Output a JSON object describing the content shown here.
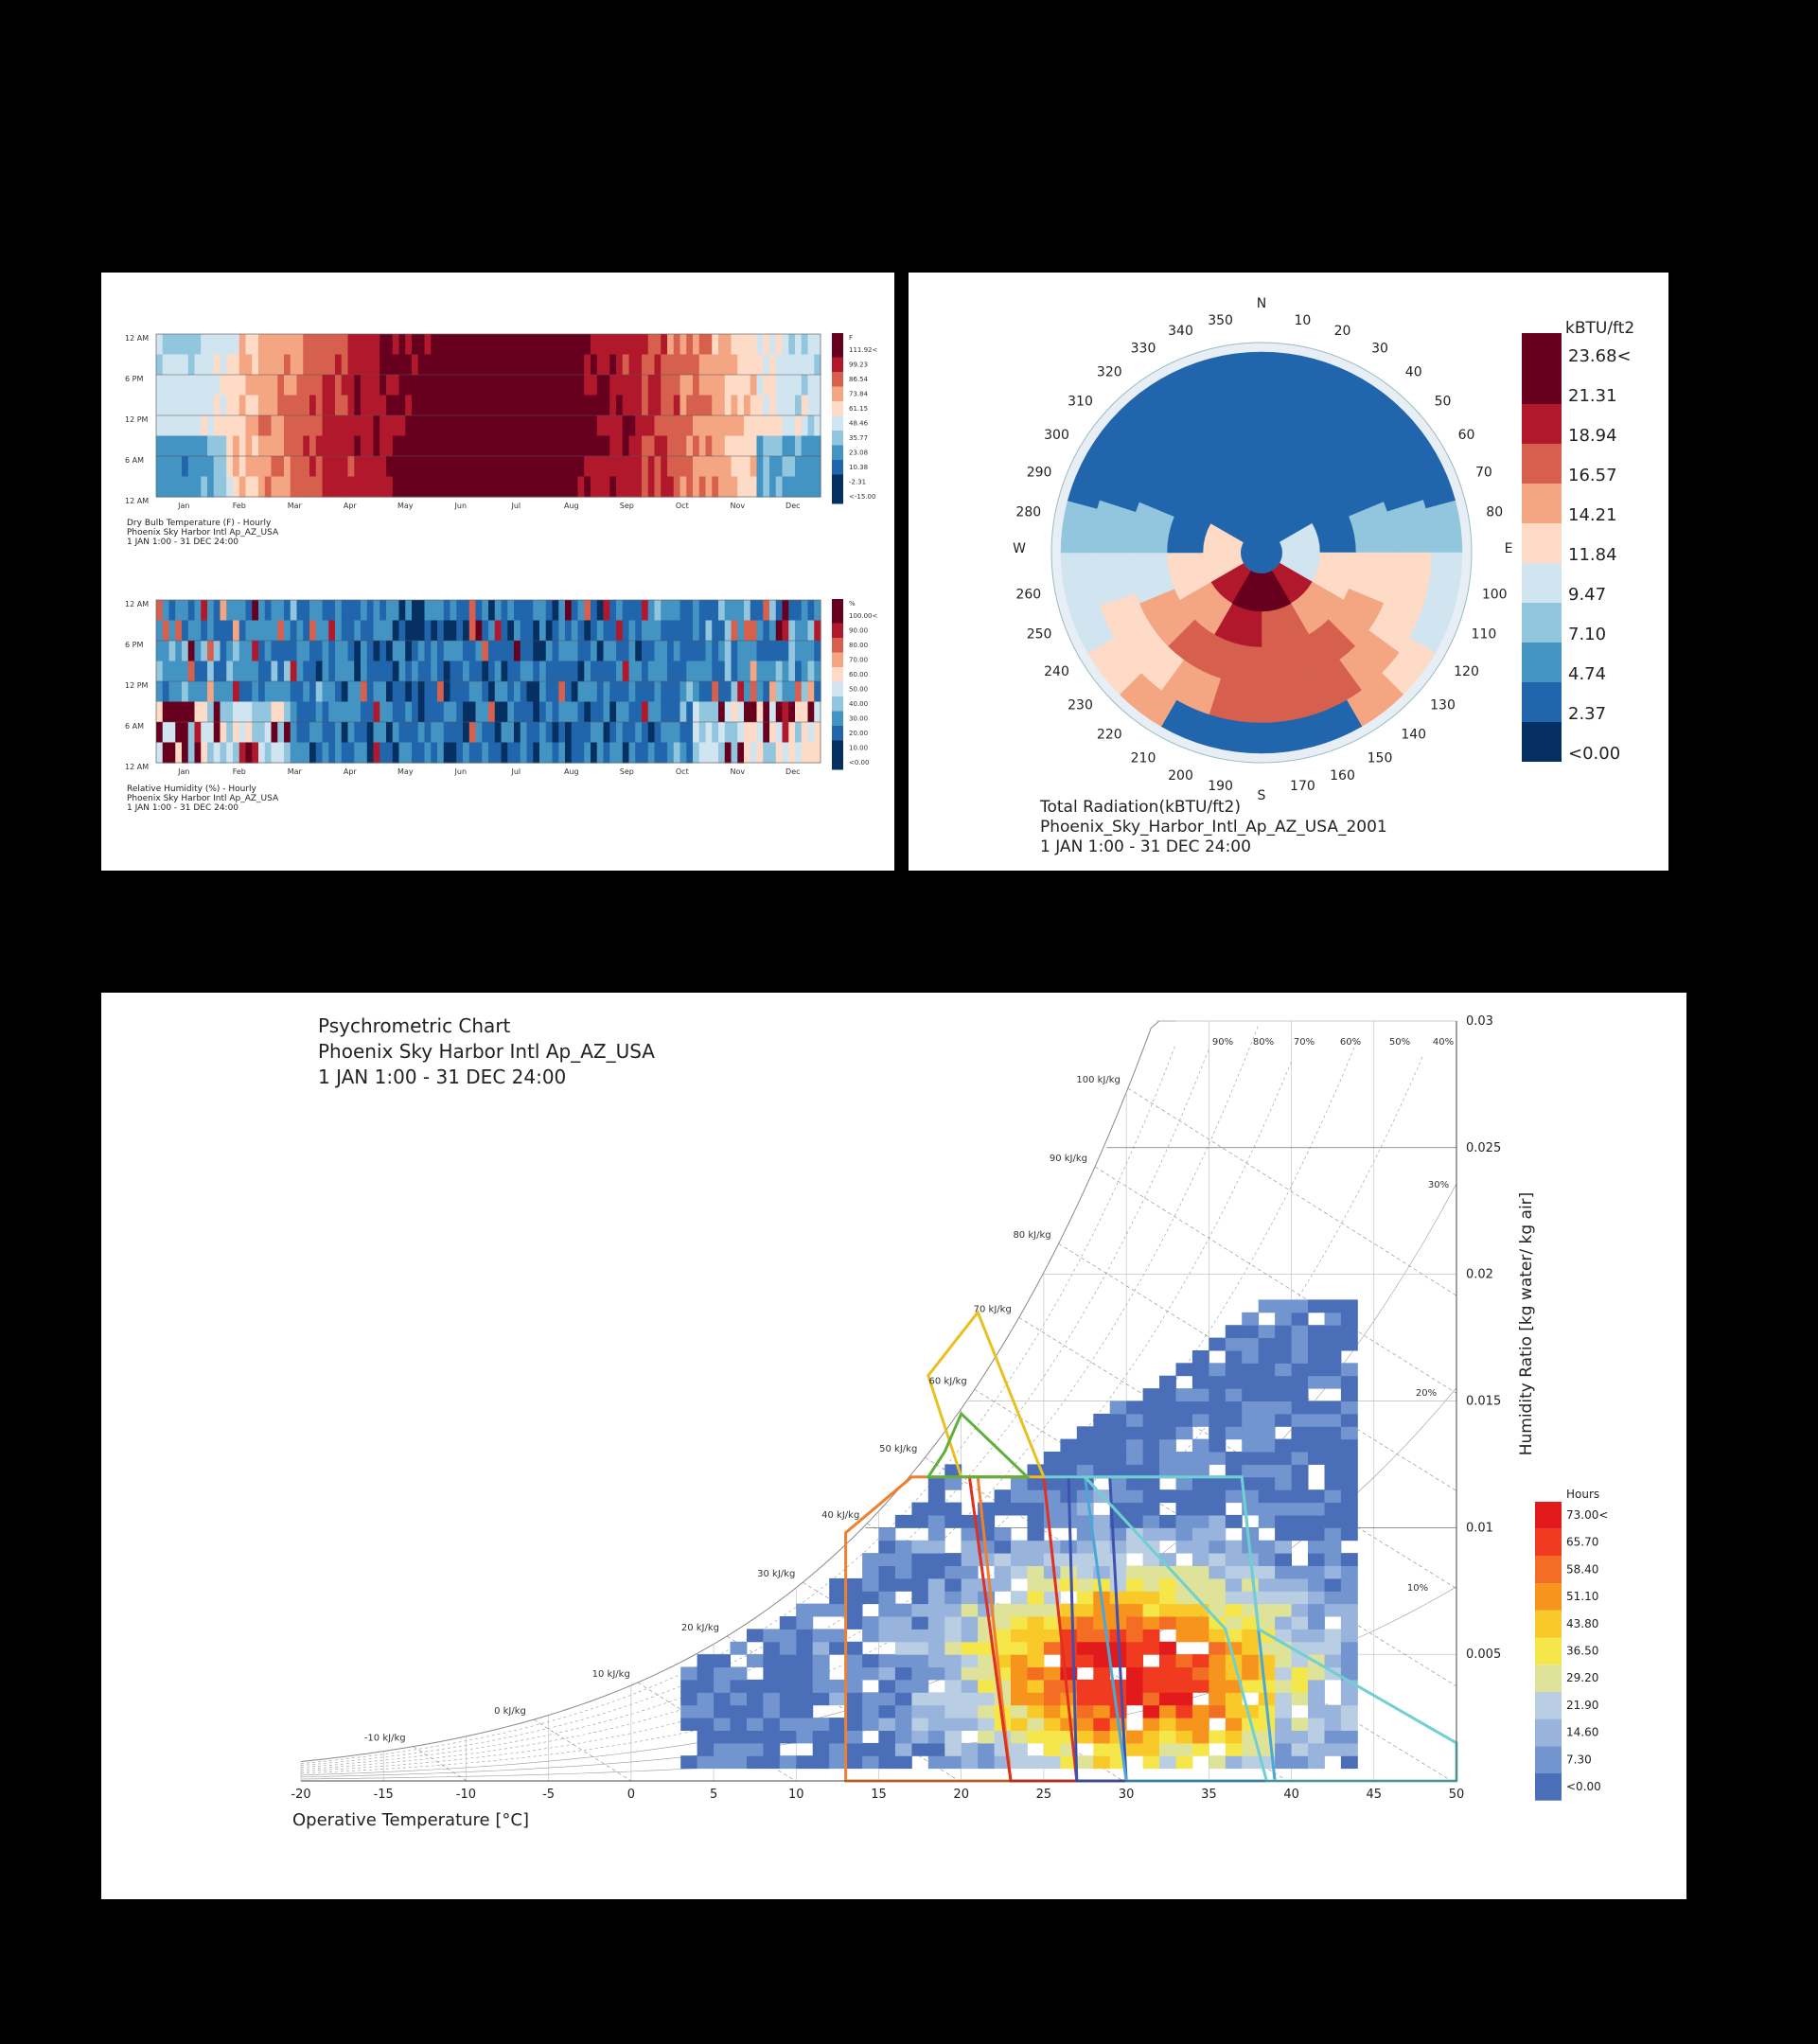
{
  "chart_data": [
    {
      "type": "heatmap",
      "id": "dry-bulb",
      "caption": [
        "Dry Bulb Temperature (F) - Hourly",
        "Phoenix Sky Harbor Intl Ap_AZ_USA",
        "1 JAN 1:00 - 31 DEC 24:00"
      ],
      "y_ticks": [
        "12 AM",
        "6 PM",
        "12 PM",
        "6 AM",
        "12 AM"
      ],
      "x_ticks": [
        "Jan",
        "Feb",
        "Mar",
        "Apr",
        "May",
        "Jun",
        "Jul",
        "Aug",
        "Sep",
        "Oct",
        "Nov",
        "Dec"
      ],
      "legend_unit": "F",
      "legend": [
        "111.92<",
        "99.23",
        "86.54",
        "73.84",
        "61.15",
        "48.46",
        "35.77",
        "23.08",
        "10.38",
        "-2.31",
        "<-15.00"
      ]
    },
    {
      "type": "heatmap",
      "id": "relative-humidity",
      "caption": [
        "Relative Humidity (%) - Hourly",
        "Phoenix Sky Harbor Intl Ap_AZ_USA",
        "1 JAN 1:00 - 31 DEC 24:00"
      ],
      "y_ticks": [
        "12 AM",
        "6 PM",
        "12 PM",
        "6 AM",
        "12 AM"
      ],
      "x_ticks": [
        "Jan",
        "Feb",
        "Mar",
        "Apr",
        "May",
        "Jun",
        "Jul",
        "Aug",
        "Sep",
        "Oct",
        "Nov",
        "Dec"
      ],
      "legend_unit": "%",
      "legend": [
        "100.00<",
        "90.00",
        "80.00",
        "70.00",
        "60.00",
        "50.00",
        "40.00",
        "30.00",
        "20.00",
        "10.00",
        "<0.00"
      ]
    },
    {
      "type": "heatmap",
      "id": "radiation-rose",
      "caption": [
        "Total Radiation(kBTU/ft2)",
        "Phoenix_Sky_Harbor_Intl_Ap_AZ_USA_2001",
        "1 JAN 1:00 - 31 DEC 24:00"
      ],
      "directions": {
        "north": "N",
        "east": "E",
        "south": "S",
        "west": "W"
      },
      "azimuth_labels": [
        10,
        20,
        30,
        40,
        50,
        60,
        70,
        80,
        100,
        110,
        120,
        130,
        140,
        150,
        160,
        170,
        190,
        200,
        210,
        220,
        230,
        240,
        250,
        260,
        280,
        290,
        300,
        310,
        320,
        330,
        340,
        350
      ],
      "legend_unit": "kBTU/ft2",
      "legend": [
        "23.68<",
        "21.31",
        "18.94",
        "16.57",
        "14.21",
        "11.84",
        "9.47",
        "7.10",
        "4.74",
        "2.37",
        "<0.00"
      ]
    },
    {
      "type": "heatmap",
      "id": "psychrometric",
      "title": [
        "Psychrometric Chart",
        "Phoenix Sky Harbor Intl Ap_AZ_USA",
        "1 JAN 1:00 - 31 DEC 24:00"
      ],
      "xlabel": "Operative Temperature [°C]",
      "ylabel": "Humidity Ratio [kg water/ kg air]",
      "x_ticks": [
        -20,
        -15,
        -10,
        -5,
        0,
        5,
        10,
        15,
        20,
        25,
        30,
        35,
        40,
        45,
        50
      ],
      "y_ticks": [
        "0.005",
        "0.01",
        "0.015",
        "0.02",
        "0.025",
        "0.03"
      ],
      "xlim": [
        -20,
        50
      ],
      "ylim": [
        0,
        0.03
      ],
      "enthalpy_labels": [
        "-10 kJ/kg",
        "0 kJ/kg",
        "10 kJ/kg",
        "20 kJ/kg",
        "30 kJ/kg",
        "40 kJ/kg",
        "50 kJ/kg",
        "60 kJ/kg",
        "70 kJ/kg",
        "80 kJ/kg",
        "90 kJ/kg",
        "100 kJ/kg"
      ],
      "rh_labels": [
        "90%",
        "80%",
        "70%",
        "60%",
        "50%",
        "40%",
        "30%",
        "20%",
        "10%"
      ],
      "legend_unit": "Hours",
      "legend": [
        "73.00<",
        "65.70",
        "58.40",
        "51.10",
        "43.80",
        "36.50",
        "29.20",
        "21.90",
        "14.60",
        "7.30",
        "<0.00"
      ]
    }
  ],
  "colors": {
    "warm": [
      "#67001f",
      "#b2182b",
      "#d6604d",
      "#f4a582",
      "#fddbc7"
    ],
    "cool": [
      "#d1e5f0",
      "#92c5de",
      "#4393c3",
      "#2166ac",
      "#053061"
    ],
    "hours": [
      "#e31a1c",
      "#f03b20",
      "#f46d25",
      "#f7941d",
      "#f9c92a",
      "#f5e74a",
      "#dfe39a",
      "#b9cde3",
      "#98b4dd",
      "#7295d0",
      "#4a6fb8"
    ]
  }
}
